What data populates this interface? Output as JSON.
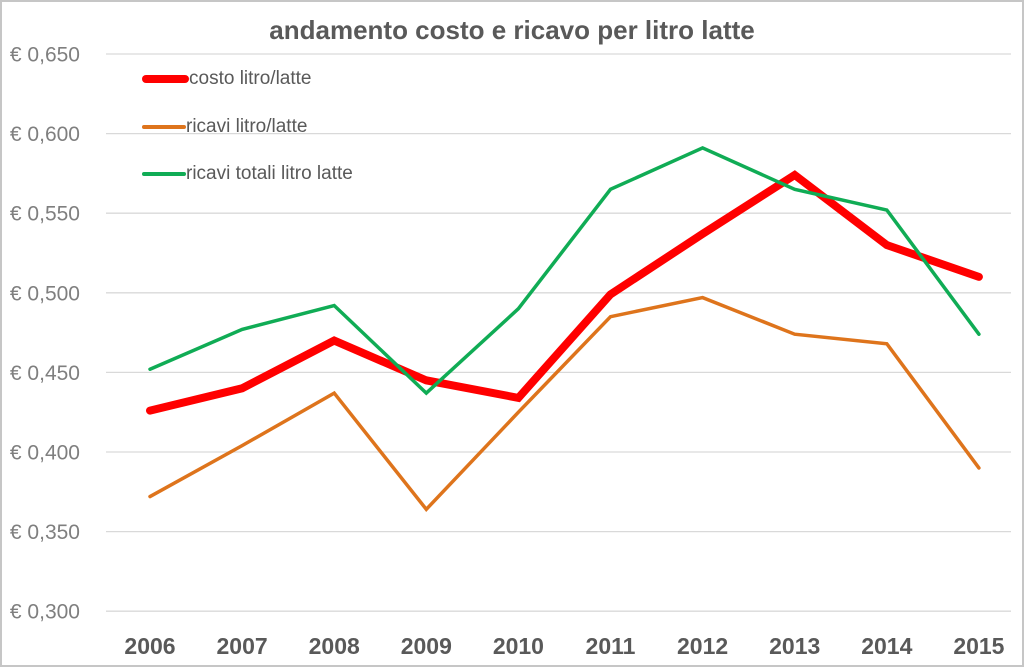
{
  "window": {
    "background": "#ffffff",
    "border_color": "#c6c6c6"
  },
  "chart_data": {
    "type": "line",
    "title": "andamento costo e ricavo per litro latte",
    "title_color": "#595959",
    "categories": [
      "2006",
      "2007",
      "2008",
      "2009",
      "2010",
      "2011",
      "2012",
      "2013",
      "2014",
      "2015"
    ],
    "series": [
      {
        "name": "costo litro/latte",
        "color": "#ff0000",
        "stroke_width": 8,
        "values": [
          0.426,
          0.44,
          0.47,
          0.445,
          0.434,
          0.499,
          0.537,
          0.574,
          0.53,
          0.51
        ]
      },
      {
        "name": "ricavi litro/latte",
        "color": "#de741c",
        "stroke_width": 3.5,
        "values": [
          0.372,
          0.404,
          0.437,
          0.364,
          0.425,
          0.485,
          0.497,
          0.474,
          0.468,
          0.39
        ]
      },
      {
        "name": "ricavi totali litro latte",
        "color": "#10ac55",
        "stroke_width": 3.5,
        "values": [
          0.452,
          0.477,
          0.492,
          0.437,
          0.49,
          0.565,
          0.591,
          0.565,
          0.552,
          0.474
        ]
      }
    ],
    "y_axis": {
      "min": 0.3,
      "max": 0.65,
      "step": 0.05,
      "tick_labels": [
        "€ 0,650",
        "€ 0,600",
        "€ 0,550",
        "€ 0,500",
        "€ 0,450",
        "€ 0,400",
        "€ 0,350",
        "€ 0,300"
      ],
      "tick_values": [
        0.65,
        0.6,
        0.55,
        0.5,
        0.45,
        0.4,
        0.35,
        0.3
      ],
      "label_color": "#7f7f7f"
    },
    "x_axis": {
      "label_color": "#595959"
    },
    "grid": {
      "show": true,
      "color": "#d9d9d9"
    },
    "legend": {
      "position": "top-left"
    }
  }
}
